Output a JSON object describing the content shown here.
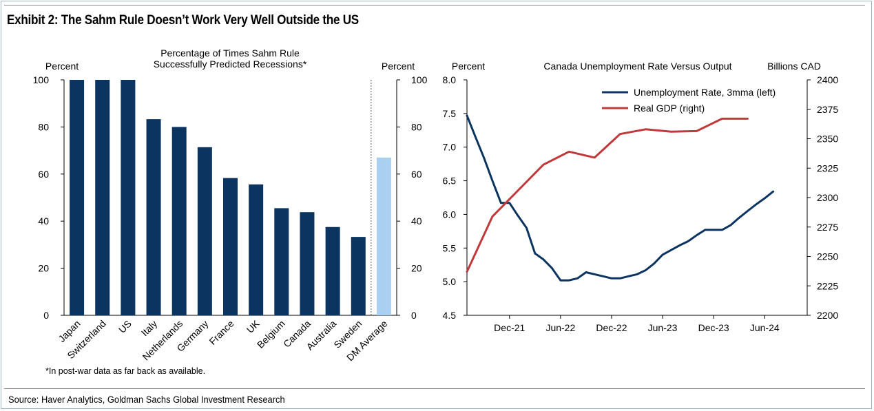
{
  "title": "Exhibit 2: The Sahm Rule Doesn’t Work Very Well Outside the US",
  "source": "Source: Haver Analytics, Goldman Sachs Global Investment Research",
  "chart_data": [
    {
      "type": "bar",
      "title": "Percentage of Times Sahm Rule Successfully Predicted Recessions*",
      "title_lines": [
        "Percentage of Times Sahm Rule",
        "Successfully Predicted Recessions*"
      ],
      "ylabel_left": "Percent",
      "ylabel_right": "Percent",
      "ylim": [
        0,
        100
      ],
      "yticks": [
        0,
        20,
        40,
        60,
        80,
        100
      ],
      "categories": [
        "Japan",
        "Switzerland",
        "US",
        "Italy",
        "Netherlands",
        "Germany",
        "France",
        "UK",
        "Belgium",
        "Canada",
        "Australia",
        "Sweden",
        "DM Average"
      ],
      "values": [
        100,
        100,
        100,
        83.3,
        80,
        71.4,
        58.3,
        55.6,
        45.5,
        43.8,
        37.5,
        33.3,
        67
      ],
      "highlight_category": "DM Average",
      "colors": {
        "bar": "#0b3461",
        "highlight": "#a9d0f0"
      },
      "footnote": "*In post-war data as far back as available."
    },
    {
      "type": "line",
      "title": "Canada Unemployment Rate Versus Output",
      "ylabel_left": "Percent",
      "ylabel_right": "Billions CAD",
      "ylim_left": [
        4.5,
        8.0
      ],
      "yticks_left": [
        "4.5",
        "5.0",
        "5.5",
        "6.0",
        "6.5",
        "7.0",
        "7.5",
        "8.0"
      ],
      "ylim_right": [
        2200,
        2400
      ],
      "yticks_right": [
        "2200",
        "2225",
        "2250",
        "2275",
        "2300",
        "2325",
        "2350",
        "2375",
        "2400"
      ],
      "x_range": [
        "2021-07",
        "2024-11"
      ],
      "xticks": [
        {
          "label": "Dec-21",
          "month": 5
        },
        {
          "label": "Jun-22",
          "month": 11
        },
        {
          "label": "Dec-22",
          "month": 17
        },
        {
          "label": "Jun-23",
          "month": 23
        },
        {
          "label": "Dec-23",
          "month": 29
        },
        {
          "label": "Jun-24",
          "month": 35
        }
      ],
      "x_month_span": 40,
      "series": [
        {
          "name": "Unemployment Rate, 3mma (left)",
          "axis": "left",
          "color": "#0b3461",
          "months": [
            0,
            1,
            2,
            3,
            4,
            5,
            6,
            7,
            8,
            9,
            10,
            11,
            12,
            13,
            14,
            15,
            16,
            17,
            18,
            19,
            20,
            21,
            22,
            23,
            24,
            25,
            26,
            27,
            28,
            29,
            30,
            31,
            32,
            33,
            34,
            35,
            36
          ],
          "values": [
            7.47,
            7.15,
            6.84,
            6.5,
            6.17,
            6.17,
            5.98,
            5.8,
            5.42,
            5.33,
            5.2,
            5.02,
            5.02,
            5.05,
            5.14,
            5.11,
            5.08,
            5.05,
            5.05,
            5.08,
            5.11,
            5.17,
            5.27,
            5.4,
            5.47,
            5.54,
            5.6,
            5.69,
            5.77,
            5.77,
            5.77,
            5.84,
            5.95,
            6.05,
            6.15,
            6.24,
            6.34
          ]
        },
        {
          "name": "Real GDP (right)",
          "axis": "right",
          "color": "#c0393b",
          "months": [
            0,
            3,
            6,
            9,
            12,
            15,
            18,
            21,
            24,
            27,
            30,
            33
          ],
          "values": [
            2237,
            2284,
            2306,
            2328,
            2339,
            2334,
            2354,
            2358,
            2356,
            2356.5,
            2367,
            2367
          ]
        }
      ]
    }
  ]
}
